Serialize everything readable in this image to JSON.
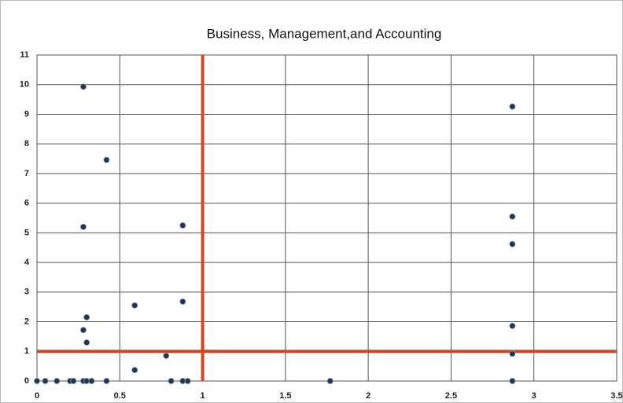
{
  "chart_data": {
    "type": "scatter",
    "title": "Business, Management,and Accounting",
    "series": [
      {
        "color": "#1f3550",
        "x": [
          0,
          0.05,
          0.12,
          0.2,
          0.22,
          0.28,
          0.3,
          0.33,
          0.42,
          0.28,
          0.42,
          0.28,
          0.3,
          0.28,
          0.3,
          0.59,
          0.59,
          0.78,
          0.81,
          0.88,
          0.88,
          0.88,
          0.91,
          1.77,
          2.87,
          2.87,
          2.87,
          2.87,
          2.87,
          2.87
        ],
        "values": [
          0,
          0,
          0,
          0,
          0,
          0,
          0,
          0,
          0,
          9.93,
          7.46,
          5.2,
          2.15,
          1.72,
          1.3,
          2.55,
          0.37,
          0.85,
          0,
          5.25,
          2.68,
          0,
          0,
          0,
          9.26,
          5.55,
          4.62,
          1.86,
          0.92,
          0
        ]
      }
    ],
    "xlim": [
      0,
      3.5
    ],
    "xticks": [
      0,
      0.5,
      1,
      1.5,
      2,
      2.5,
      3,
      3.5
    ],
    "ylim": [
      0,
      11
    ],
    "yticks": [
      0,
      1,
      2,
      3,
      4,
      5,
      6,
      7,
      8,
      9,
      10,
      11
    ],
    "grid": true,
    "reference_lines": {
      "color": "#d2461c",
      "x": [
        1
      ],
      "y": [
        1
      ]
    }
  }
}
